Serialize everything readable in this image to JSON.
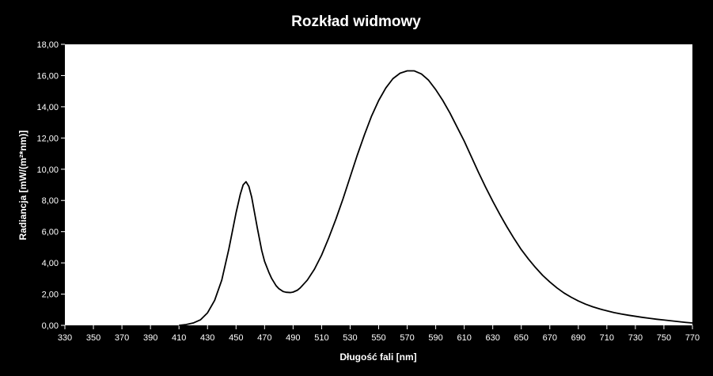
{
  "chart_data": {
    "type": "line",
    "title": "Rozkład widmowy",
    "xlabel": "Długość fali [nm]",
    "ylabel": "Radiancja [mW/(m²*nm)]",
    "xlim": [
      330,
      770
    ],
    "ylim": [
      0,
      18
    ],
    "x_ticks": [
      "330",
      "350",
      "370",
      "390",
      "410",
      "430",
      "450",
      "470",
      "490",
      "510",
      "530",
      "550",
      "570",
      "590",
      "610",
      "630",
      "650",
      "670",
      "690",
      "710",
      "730",
      "750",
      "770"
    ],
    "y_ticks": [
      "0,00",
      "2,00",
      "4,00",
      "6,00",
      "8,00",
      "10,00",
      "12,00",
      "14,00",
      "16,00",
      "18,00"
    ],
    "grid": false,
    "legend": "none",
    "colors": {
      "background": "#000000",
      "plot_area": "#ffffff",
      "line": "#000000",
      "text": "#ffffff"
    },
    "series": [
      {
        "x": [
          410,
          415,
          420,
          425,
          430,
          435,
          440,
          445,
          450,
          453,
          455,
          457,
          459,
          461,
          463,
          465,
          468,
          470,
          473,
          475,
          478,
          480,
          483,
          485,
          488,
          490,
          493,
          495,
          500,
          505,
          510,
          515,
          520,
          525,
          530,
          535,
          540,
          545,
          550,
          555,
          560,
          565,
          570,
          575,
          580,
          585,
          590,
          595,
          600,
          605,
          610,
          615,
          620,
          625,
          630,
          635,
          640,
          645,
          650,
          655,
          660,
          665,
          670,
          675,
          680,
          685,
          690,
          695,
          700,
          705,
          710,
          715,
          720,
          725,
          730,
          735,
          740,
          745,
          750,
          755,
          760,
          765,
          770
        ],
        "y": [
          0.0,
          0.05,
          0.15,
          0.35,
          0.8,
          1.6,
          2.9,
          4.9,
          7.2,
          8.4,
          9.0,
          9.2,
          8.9,
          8.2,
          7.2,
          6.2,
          4.8,
          4.1,
          3.4,
          3.0,
          2.55,
          2.35,
          2.17,
          2.12,
          2.1,
          2.13,
          2.25,
          2.4,
          2.9,
          3.6,
          4.5,
          5.6,
          6.8,
          8.1,
          9.5,
          10.9,
          12.2,
          13.4,
          14.4,
          15.2,
          15.8,
          16.15,
          16.3,
          16.3,
          16.1,
          15.7,
          15.1,
          14.4,
          13.6,
          12.7,
          11.8,
          10.8,
          9.8,
          8.85,
          7.95,
          7.1,
          6.3,
          5.55,
          4.85,
          4.25,
          3.7,
          3.2,
          2.78,
          2.4,
          2.07,
          1.8,
          1.56,
          1.36,
          1.19,
          1.05,
          0.93,
          0.82,
          0.73,
          0.65,
          0.58,
          0.51,
          0.45,
          0.39,
          0.34,
          0.29,
          0.24,
          0.19,
          0.15
        ]
      }
    ]
  }
}
